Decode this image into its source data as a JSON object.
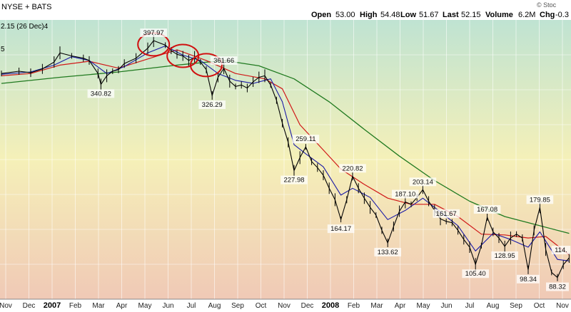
{
  "header": {
    "exchange": "NYSE + BATS",
    "open_label": "Open",
    "open": "53.00",
    "high_label": "High",
    "high": "54.48",
    "low_label": "Low",
    "low": "51.67",
    "last_label": "Last",
    "last": "52.15",
    "volume_label": "Volume",
    "volume": "6.2M",
    "chg_label": "Chg",
    "chg": "-0.3",
    "watermark": "© Stoc",
    "close_note": "2.15 (26 Dec)4",
    "legend_fragment": "5"
  },
  "colors": {
    "background_top": "#bfe3d2",
    "background_mid": "#f5f0b8",
    "background_bottom": "#f0c9b6",
    "price": "#000000",
    "ma_short": "#1a1aa6",
    "ma_medium": "#d01818",
    "ma_long": "#207a20",
    "highlight_circle": "#d01010"
  },
  "chart_data": {
    "type": "line",
    "title": "",
    "xlabel": "",
    "ylabel": "",
    "x_axis_labels": [
      "Nov",
      "Dec",
      "2007",
      "Feb",
      "Mar",
      "Apr",
      "May",
      "Jun",
      "Jul",
      "Aug",
      "Sep",
      "Oct",
      "Nov",
      "Dec",
      "2008",
      "Feb",
      "Mar",
      "Apr",
      "May",
      "Jun",
      "Jul",
      "Aug",
      "Sep",
      "Oct",
      "Nov"
    ],
    "x_axis_bold": [
      "2007",
      "2008"
    ],
    "ylim": [
      60,
      425
    ],
    "series": [
      {
        "role": "price",
        "points": [
          [
            0,
            355
          ],
          [
            3,
            358
          ],
          [
            5,
            356
          ],
          [
            7,
            361
          ],
          [
            9,
            370
          ],
          [
            10,
            382
          ],
          [
            12,
            378
          ],
          [
            14,
            375
          ],
          [
            15,
            372
          ],
          [
            16.5,
            355
          ],
          [
            17,
            340.82
          ],
          [
            18,
            352
          ],
          [
            19,
            358
          ],
          [
            20,
            360
          ],
          [
            21,
            368
          ],
          [
            23,
            375
          ],
          [
            25,
            388
          ],
          [
            26,
            397.97
          ],
          [
            28,
            392
          ],
          [
            29,
            385
          ],
          [
            30,
            380
          ],
          [
            31,
            378
          ],
          [
            32,
            372
          ],
          [
            33,
            376
          ],
          [
            34,
            370
          ],
          [
            35,
            360
          ],
          [
            36,
            326.29
          ],
          [
            37,
            350
          ],
          [
            38,
            361.66
          ],
          [
            39,
            345
          ],
          [
            40,
            338
          ],
          [
            41,
            340
          ],
          [
            42,
            336
          ],
          [
            43,
            344
          ],
          [
            44,
            350
          ],
          [
            45,
            352
          ],
          [
            46,
            340
          ],
          [
            47,
            320
          ],
          [
            48,
            290
          ],
          [
            49,
            265
          ],
          [
            50,
            227.98
          ],
          [
            51,
            245
          ],
          [
            52,
            259.11
          ],
          [
            53,
            240
          ],
          [
            54,
            232
          ],
          [
            55,
            222
          ],
          [
            56,
            205
          ],
          [
            57,
            190
          ],
          [
            58,
            164.17
          ],
          [
            59,
            190
          ],
          [
            60,
            220.82
          ],
          [
            61,
            205
          ],
          [
            62,
            192
          ],
          [
            63,
            180
          ],
          [
            64,
            170
          ],
          [
            65,
            150
          ],
          [
            66,
            133.62
          ],
          [
            67,
            155
          ],
          [
            68,
            175
          ],
          [
            69,
            187.1
          ],
          [
            70,
            184
          ],
          [
            71,
            193
          ],
          [
            72,
            203.14
          ],
          [
            73,
            188
          ],
          [
            74,
            176
          ],
          [
            75,
            165
          ],
          [
            76,
            161.67
          ],
          [
            77,
            160
          ],
          [
            78,
            150
          ],
          [
            79,
            138
          ],
          [
            80,
            128
          ],
          [
            81,
            105.4
          ],
          [
            82,
            130
          ],
          [
            83,
            167.08
          ],
          [
            84,
            148
          ],
          [
            85,
            140
          ],
          [
            86,
            128.95
          ],
          [
            87,
            140
          ],
          [
            88,
            145
          ],
          [
            89,
            140
          ],
          [
            90,
            98.34
          ],
          [
            91,
            150
          ],
          [
            92,
            179.85
          ],
          [
            93,
            125
          ],
          [
            94,
            95
          ],
          [
            95,
            88.32
          ],
          [
            96,
            105
          ],
          [
            97,
            114.0
          ]
        ]
      },
      {
        "role": "short_moving_average",
        "points": [
          [
            0,
            354
          ],
          [
            5,
            357
          ],
          [
            9,
            366
          ],
          [
            12,
            377
          ],
          [
            15,
            372
          ],
          [
            18,
            355
          ],
          [
            21,
            364
          ],
          [
            25,
            382
          ],
          [
            28,
            391
          ],
          [
            31,
            379
          ],
          [
            34,
            372
          ],
          [
            37,
            355
          ],
          [
            40,
            346
          ],
          [
            43,
            342
          ],
          [
            46,
            348
          ],
          [
            48,
            318
          ],
          [
            50,
            262
          ],
          [
            52,
            250
          ],
          [
            55,
            233
          ],
          [
            58,
            196
          ],
          [
            60,
            205
          ],
          [
            63,
            193
          ],
          [
            66,
            164
          ],
          [
            69,
            176
          ],
          [
            72,
            192
          ],
          [
            75,
            174
          ],
          [
            78,
            156
          ],
          [
            81,
            123
          ],
          [
            84,
            146
          ],
          [
            87,
            138
          ],
          [
            90,
            128
          ],
          [
            92,
            148
          ],
          [
            95,
            112
          ],
          [
            97,
            110
          ]
        ]
      },
      {
        "role": "medium_moving_average",
        "points": [
          [
            0,
            352
          ],
          [
            5,
            355
          ],
          [
            10,
            366
          ],
          [
            15,
            371
          ],
          [
            20,
            362
          ],
          [
            25,
            374
          ],
          [
            30,
            386
          ],
          [
            35,
            372
          ],
          [
            40,
            355
          ],
          [
            45,
            348
          ],
          [
            48,
            335
          ],
          [
            51,
            288
          ],
          [
            55,
            255
          ],
          [
            58,
            230
          ],
          [
            62,
            210
          ],
          [
            66,
            192
          ],
          [
            70,
            184
          ],
          [
            74,
            184
          ],
          [
            78,
            168
          ],
          [
            82,
            145
          ],
          [
            86,
            144
          ],
          [
            90,
            140
          ],
          [
            93,
            142
          ],
          [
            97,
            118
          ]
        ]
      },
      {
        "role": "long_moving_average",
        "points": [
          [
            0,
            342
          ],
          [
            10,
            350
          ],
          [
            20,
            357
          ],
          [
            30,
            366
          ],
          [
            38,
            372
          ],
          [
            44,
            365
          ],
          [
            50,
            348
          ],
          [
            56,
            318
          ],
          [
            62,
            282
          ],
          [
            68,
            247
          ],
          [
            74,
            215
          ],
          [
            80,
            188
          ],
          [
            86,
            168
          ],
          [
            92,
            156
          ],
          [
            97,
            146
          ]
        ]
      }
    ],
    "annotations": [
      "397.97",
      "340.82",
      "361.66",
      "326.29",
      "259.11",
      "227.98",
      "220.82",
      "164.17",
      "203.14",
      "187.10",
      "133.62",
      "161.67",
      "167.08",
      "105.40",
      "128.95",
      "179.85",
      "98.34",
      "88.32",
      "114."
    ],
    "highlight_circles": [
      {
        "x": 26,
        "y": 393
      },
      {
        "x": 31,
        "y": 378
      },
      {
        "x": 35,
        "y": 366
      }
    ],
    "grid": true
  }
}
